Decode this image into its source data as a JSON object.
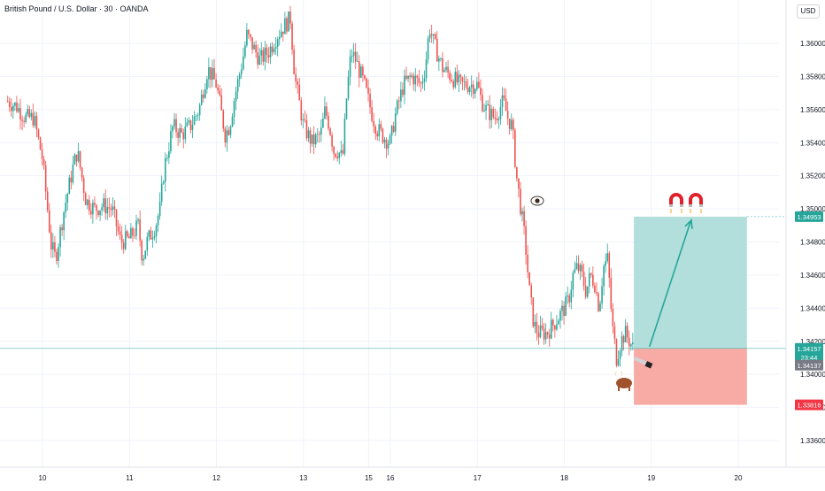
{
  "header": {
    "title": "British Pound / U.S. Dollar · 30 · OANDA",
    "currency": "USD"
  },
  "colors": {
    "up": "#26a69a",
    "down": "#ef5350",
    "target_zone": "#b2dfdb",
    "stop_zone": "#f8aaa5",
    "target_badge": "#26a69a",
    "stop_badge": "#f23645",
    "current_badge": "#26a69a",
    "prev_badge": "#787b86",
    "price_line": "#26a69a",
    "magnet": "#e0202a",
    "bull": "#a0522d"
  },
  "chart_data": {
    "type": "candlestick",
    "symbol": "GBP/USD",
    "timeframe": "30",
    "source": "OANDA",
    "x_ticks": [
      {
        "label": "10",
        "day": 0
      },
      {
        "label": "11",
        "day": 1
      },
      {
        "label": "12",
        "day": 2
      },
      {
        "label": "13",
        "day": 3
      },
      {
        "label": "15",
        "day": 3.75
      },
      {
        "label": "16",
        "day": 4
      },
      {
        "label": "17",
        "day": 5
      },
      {
        "label": "18",
        "day": 6
      },
      {
        "label": "19",
        "day": 7
      },
      {
        "label": "20",
        "day": 8
      }
    ],
    "y_ticks": [
      "1.36000",
      "1.35800",
      "1.35600",
      "1.35400",
      "1.35200",
      "1.35000",
      "1.34800",
      "1.34600",
      "1.34400",
      "1.34200",
      "1.34000",
      "1.33800",
      "1.33600"
    ],
    "ylim": [
      1.3345,
      1.3622
    ],
    "path_points": [
      [
        -0.4,
        1.3565
      ],
      [
        -0.3,
        1.3562
      ],
      [
        -0.2,
        1.3555
      ],
      [
        -0.1,
        1.3555
      ],
      [
        0.0,
        1.353
      ],
      [
        0.1,
        1.3478
      ],
      [
        0.15,
        1.347
      ],
      [
        0.25,
        1.35
      ],
      [
        0.35,
        1.3525
      ],
      [
        0.4,
        1.3535
      ],
      [
        0.5,
        1.3505
      ],
      [
        0.6,
        1.35
      ],
      [
        0.7,
        1.3502
      ],
      [
        0.8,
        1.35
      ],
      [
        0.9,
        1.348
      ],
      [
        1.0,
        1.3482
      ],
      [
        1.1,
        1.349
      ],
      [
        1.15,
        1.347
      ],
      [
        1.2,
        1.348
      ],
      [
        1.3,
        1.349
      ],
      [
        1.35,
        1.35
      ],
      [
        1.4,
        1.3525
      ],
      [
        1.5,
        1.355
      ],
      [
        1.6,
        1.3545
      ],
      [
        1.7,
        1.355
      ],
      [
        1.8,
        1.356
      ],
      [
        1.9,
        1.3585
      ],
      [
        2.0,
        1.3575
      ],
      [
        2.1,
        1.3545
      ],
      [
        2.15,
        1.355
      ],
      [
        2.2,
        1.3565
      ],
      [
        2.3,
        1.359
      ],
      [
        2.35,
        1.3605
      ],
      [
        2.4,
        1.36
      ],
      [
        2.5,
        1.359
      ],
      [
        2.6,
        1.3595
      ],
      [
        2.7,
        1.3605
      ],
      [
        2.8,
        1.3612
      ],
      [
        2.85,
        1.3615
      ],
      [
        2.9,
        1.358
      ],
      [
        2.95,
        1.3565
      ],
      [
        3.0,
        1.355
      ],
      [
        3.05,
        1.3545
      ],
      [
        3.1,
        1.354
      ],
      [
        3.2,
        1.3545
      ],
      [
        3.25,
        1.356
      ],
      [
        3.3,
        1.355
      ],
      [
        3.35,
        1.3535
      ],
      [
        3.4,
        1.3535
      ],
      [
        3.45,
        1.353
      ],
      [
        3.5,
        1.357
      ],
      [
        3.55,
        1.3595
      ],
      [
        3.6,
        1.359
      ],
      [
        3.7,
        1.3575
      ],
      [
        3.75,
        1.3565
      ],
      [
        3.8,
        1.3555
      ],
      [
        3.85,
        1.3548
      ],
      [
        3.9,
        1.3545
      ],
      [
        3.95,
        1.3542
      ],
      [
        4.0,
        1.354
      ],
      [
        4.05,
        1.3555
      ],
      [
        4.15,
        1.3575
      ],
      [
        4.25,
        1.358
      ],
      [
        4.35,
        1.3575
      ],
      [
        4.4,
        1.3585
      ],
      [
        4.45,
        1.361
      ],
      [
        4.5,
        1.36
      ],
      [
        4.6,
        1.3585
      ],
      [
        4.7,
        1.358
      ],
      [
        4.8,
        1.3575
      ],
      [
        4.9,
        1.3575
      ],
      [
        5.0,
        1.3575
      ],
      [
        5.05,
        1.3565
      ],
      [
        5.1,
        1.356
      ],
      [
        5.2,
        1.3555
      ],
      [
        5.3,
        1.3565
      ],
      [
        5.35,
        1.3555
      ],
      [
        5.4,
        1.355
      ],
      [
        5.45,
        1.352
      ],
      [
        5.5,
        1.35
      ],
      [
        5.55,
        1.348
      ],
      [
        5.6,
        1.345
      ],
      [
        5.65,
        1.343
      ],
      [
        5.7,
        1.3425
      ],
      [
        5.8,
        1.3425
      ],
      [
        5.9,
        1.3432
      ],
      [
        6.0,
        1.344
      ],
      [
        6.05,
        1.3445
      ],
      [
        6.1,
        1.346
      ],
      [
        6.15,
        1.3465
      ],
      [
        6.2,
        1.346
      ],
      [
        6.25,
        1.345
      ],
      [
        6.3,
        1.346
      ],
      [
        6.35,
        1.3455
      ],
      [
        6.4,
        1.344
      ],
      [
        6.45,
        1.3465
      ],
      [
        6.5,
        1.347
      ],
      [
        6.55,
        1.343
      ],
      [
        6.6,
        1.341
      ],
      [
        6.65,
        1.342
      ],
      [
        6.7,
        1.3425
      ],
      [
        6.75,
        1.342
      ],
      [
        6.8,
        1.3415
      ]
    ],
    "position": {
      "type": "long",
      "entry": 1.34157,
      "target": 1.34953,
      "stop": 1.33816,
      "start_day": 6.8,
      "end_day": 8.1
    },
    "current_price": "1.34157",
    "countdown": "23:44",
    "prev_price": "1.34137",
    "target_label": "1.34953",
    "stop_label": "1.33816"
  }
}
